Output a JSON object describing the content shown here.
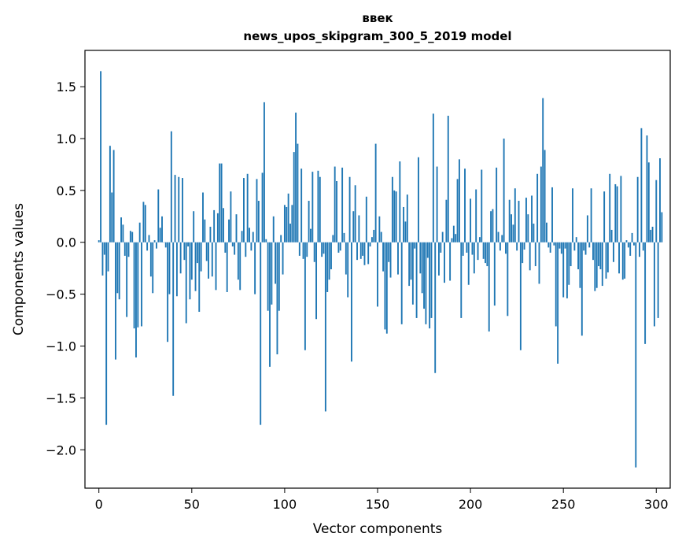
{
  "chart_data": {
    "type": "bar",
    "title": "ввек",
    "subtitle": "news_upos_skipgram_300_5_2019 model",
    "xlabel": "Vector components",
    "ylabel": "Components values",
    "xlim": [
      -7.5,
      307.5
    ],
    "ylim": [
      -2.37,
      1.85
    ],
    "xticks": [
      0,
      50,
      100,
      150,
      200,
      250,
      300
    ],
    "xtick_labels": [
      "0",
      "50",
      "100",
      "150",
      "200",
      "250",
      "300"
    ],
    "yticks": [
      1.5,
      1.0,
      0.5,
      0.0,
      -0.5,
      -1.0,
      -1.5,
      -2.0
    ],
    "ytick_labels": [
      "1.5",
      "1.0",
      "0.5",
      "0.0",
      "−0.5",
      "−1.0",
      "−1.5",
      "−2.0"
    ],
    "color": "#1f77b4",
    "series": [
      {
        "name": "ввек",
        "values": [
          0.02,
          1.65,
          -0.32,
          -0.12,
          -1.76,
          -0.28,
          0.93,
          0.48,
          0.89,
          -1.13,
          -0.49,
          -0.55,
          0.24,
          0.17,
          -0.13,
          -0.72,
          -0.14,
          0.11,
          0.1,
          -0.83,
          -1.11,
          -0.82,
          0.19,
          -0.81,
          0.39,
          0.36,
          -0.08,
          0.07,
          -0.33,
          -0.49,
          0.02,
          -0.06,
          0.51,
          0.14,
          0.25,
          0.0,
          -0.05,
          -0.96,
          -0.5,
          1.07,
          -1.48,
          0.65,
          -0.52,
          0.63,
          -0.3,
          0.62,
          -0.17,
          -0.78,
          -0.04,
          -0.55,
          -0.36,
          0.3,
          -0.47,
          -0.2,
          -0.67,
          -0.28,
          0.48,
          0.22,
          -0.18,
          -0.35,
          0.15,
          -0.33,
          0.31,
          -0.46,
          0.28,
          0.76,
          0.76,
          0.33,
          -0.1,
          -0.48,
          0.22,
          0.49,
          -0.04,
          -0.12,
          0.27,
          -0.36,
          -0.46,
          0.11,
          0.62,
          -0.14,
          0.66,
          0.14,
          -0.08,
          0.1,
          -0.5,
          0.61,
          0.4,
          -1.76,
          0.67,
          1.35,
          0.03,
          -0.66,
          -1.2,
          -0.6,
          0.25,
          -0.4,
          -1.08,
          -0.66,
          0.07,
          -0.31,
          0.36,
          0.34,
          0.47,
          0.18,
          0.36,
          0.87,
          1.25,
          0.95,
          -0.13,
          0.71,
          -0.16,
          -1.04,
          -0.14,
          0.4,
          0.13,
          0.68,
          -0.19,
          -0.74,
          0.69,
          0.63,
          -0.14,
          -0.11,
          -1.63,
          -0.48,
          -0.36,
          -0.26,
          0.07,
          0.73,
          0.59,
          -0.1,
          -0.08,
          0.72,
          0.09,
          -0.31,
          -0.53,
          0.63,
          -1.15,
          0.3,
          0.55,
          -0.17,
          0.26,
          -0.16,
          -0.13,
          -0.22,
          0.44,
          -0.21,
          -0.04,
          0.05,
          0.12,
          0.95,
          -0.62,
          0.25,
          0.1,
          -0.28,
          -0.84,
          -0.88,
          -0.19,
          -0.34,
          0.63,
          0.5,
          0.49,
          -0.31,
          0.78,
          -0.79,
          0.34,
          0.2,
          0.46,
          -0.42,
          -0.36,
          -0.6,
          -0.06,
          -0.73,
          0.82,
          -0.3,
          -0.49,
          -0.64,
          -0.79,
          -0.15,
          -0.83,
          -0.73,
          1.24,
          -1.26,
          0.73,
          -0.32,
          -0.1,
          0.1,
          -0.39,
          0.41,
          1.22,
          -0.37,
          0.04,
          0.16,
          0.08,
          0.61,
          0.8,
          -0.73,
          -0.13,
          0.71,
          -0.1,
          -0.41,
          0.42,
          -0.12,
          -0.3,
          0.51,
          -0.17,
          0.05,
          0.7,
          -0.16,
          -0.2,
          -0.23,
          -0.86,
          0.3,
          0.32,
          -0.61,
          0.72,
          0.1,
          -0.08,
          0.07,
          1.0,
          -0.11,
          -0.71,
          0.41,
          0.27,
          0.17,
          0.52,
          -0.08,
          0.4,
          -1.04,
          -0.2,
          -0.07,
          0.43,
          0.27,
          -0.27,
          0.45,
          0.18,
          -0.23,
          0.66,
          -0.4,
          0.73,
          1.39,
          0.89,
          0.19,
          -0.05,
          -0.1,
          0.53,
          -0.03,
          -0.81,
          -1.17,
          -0.06,
          -0.11,
          -0.53,
          -0.06,
          -0.54,
          -0.41,
          -0.23,
          0.52,
          -0.08,
          0.05,
          -0.26,
          -0.44,
          -0.9,
          -0.08,
          -0.12,
          0.26,
          -0.05,
          0.52,
          -0.17,
          -0.47,
          -0.44,
          -0.23,
          -0.26,
          -0.42,
          0.49,
          -0.35,
          -0.29,
          0.66,
          0.12,
          -0.19,
          0.56,
          0.54,
          -0.3,
          0.64,
          -0.36,
          -0.35,
          0.02,
          -0.05,
          -0.13,
          0.09,
          -0.03,
          -2.17,
          0.63,
          -0.14,
          1.1,
          -0.08,
          -0.98,
          1.03,
          0.77,
          0.12,
          0.15,
          -0.81,
          0.6,
          -0.73,
          0.81,
          0.29
        ]
      }
    ]
  }
}
